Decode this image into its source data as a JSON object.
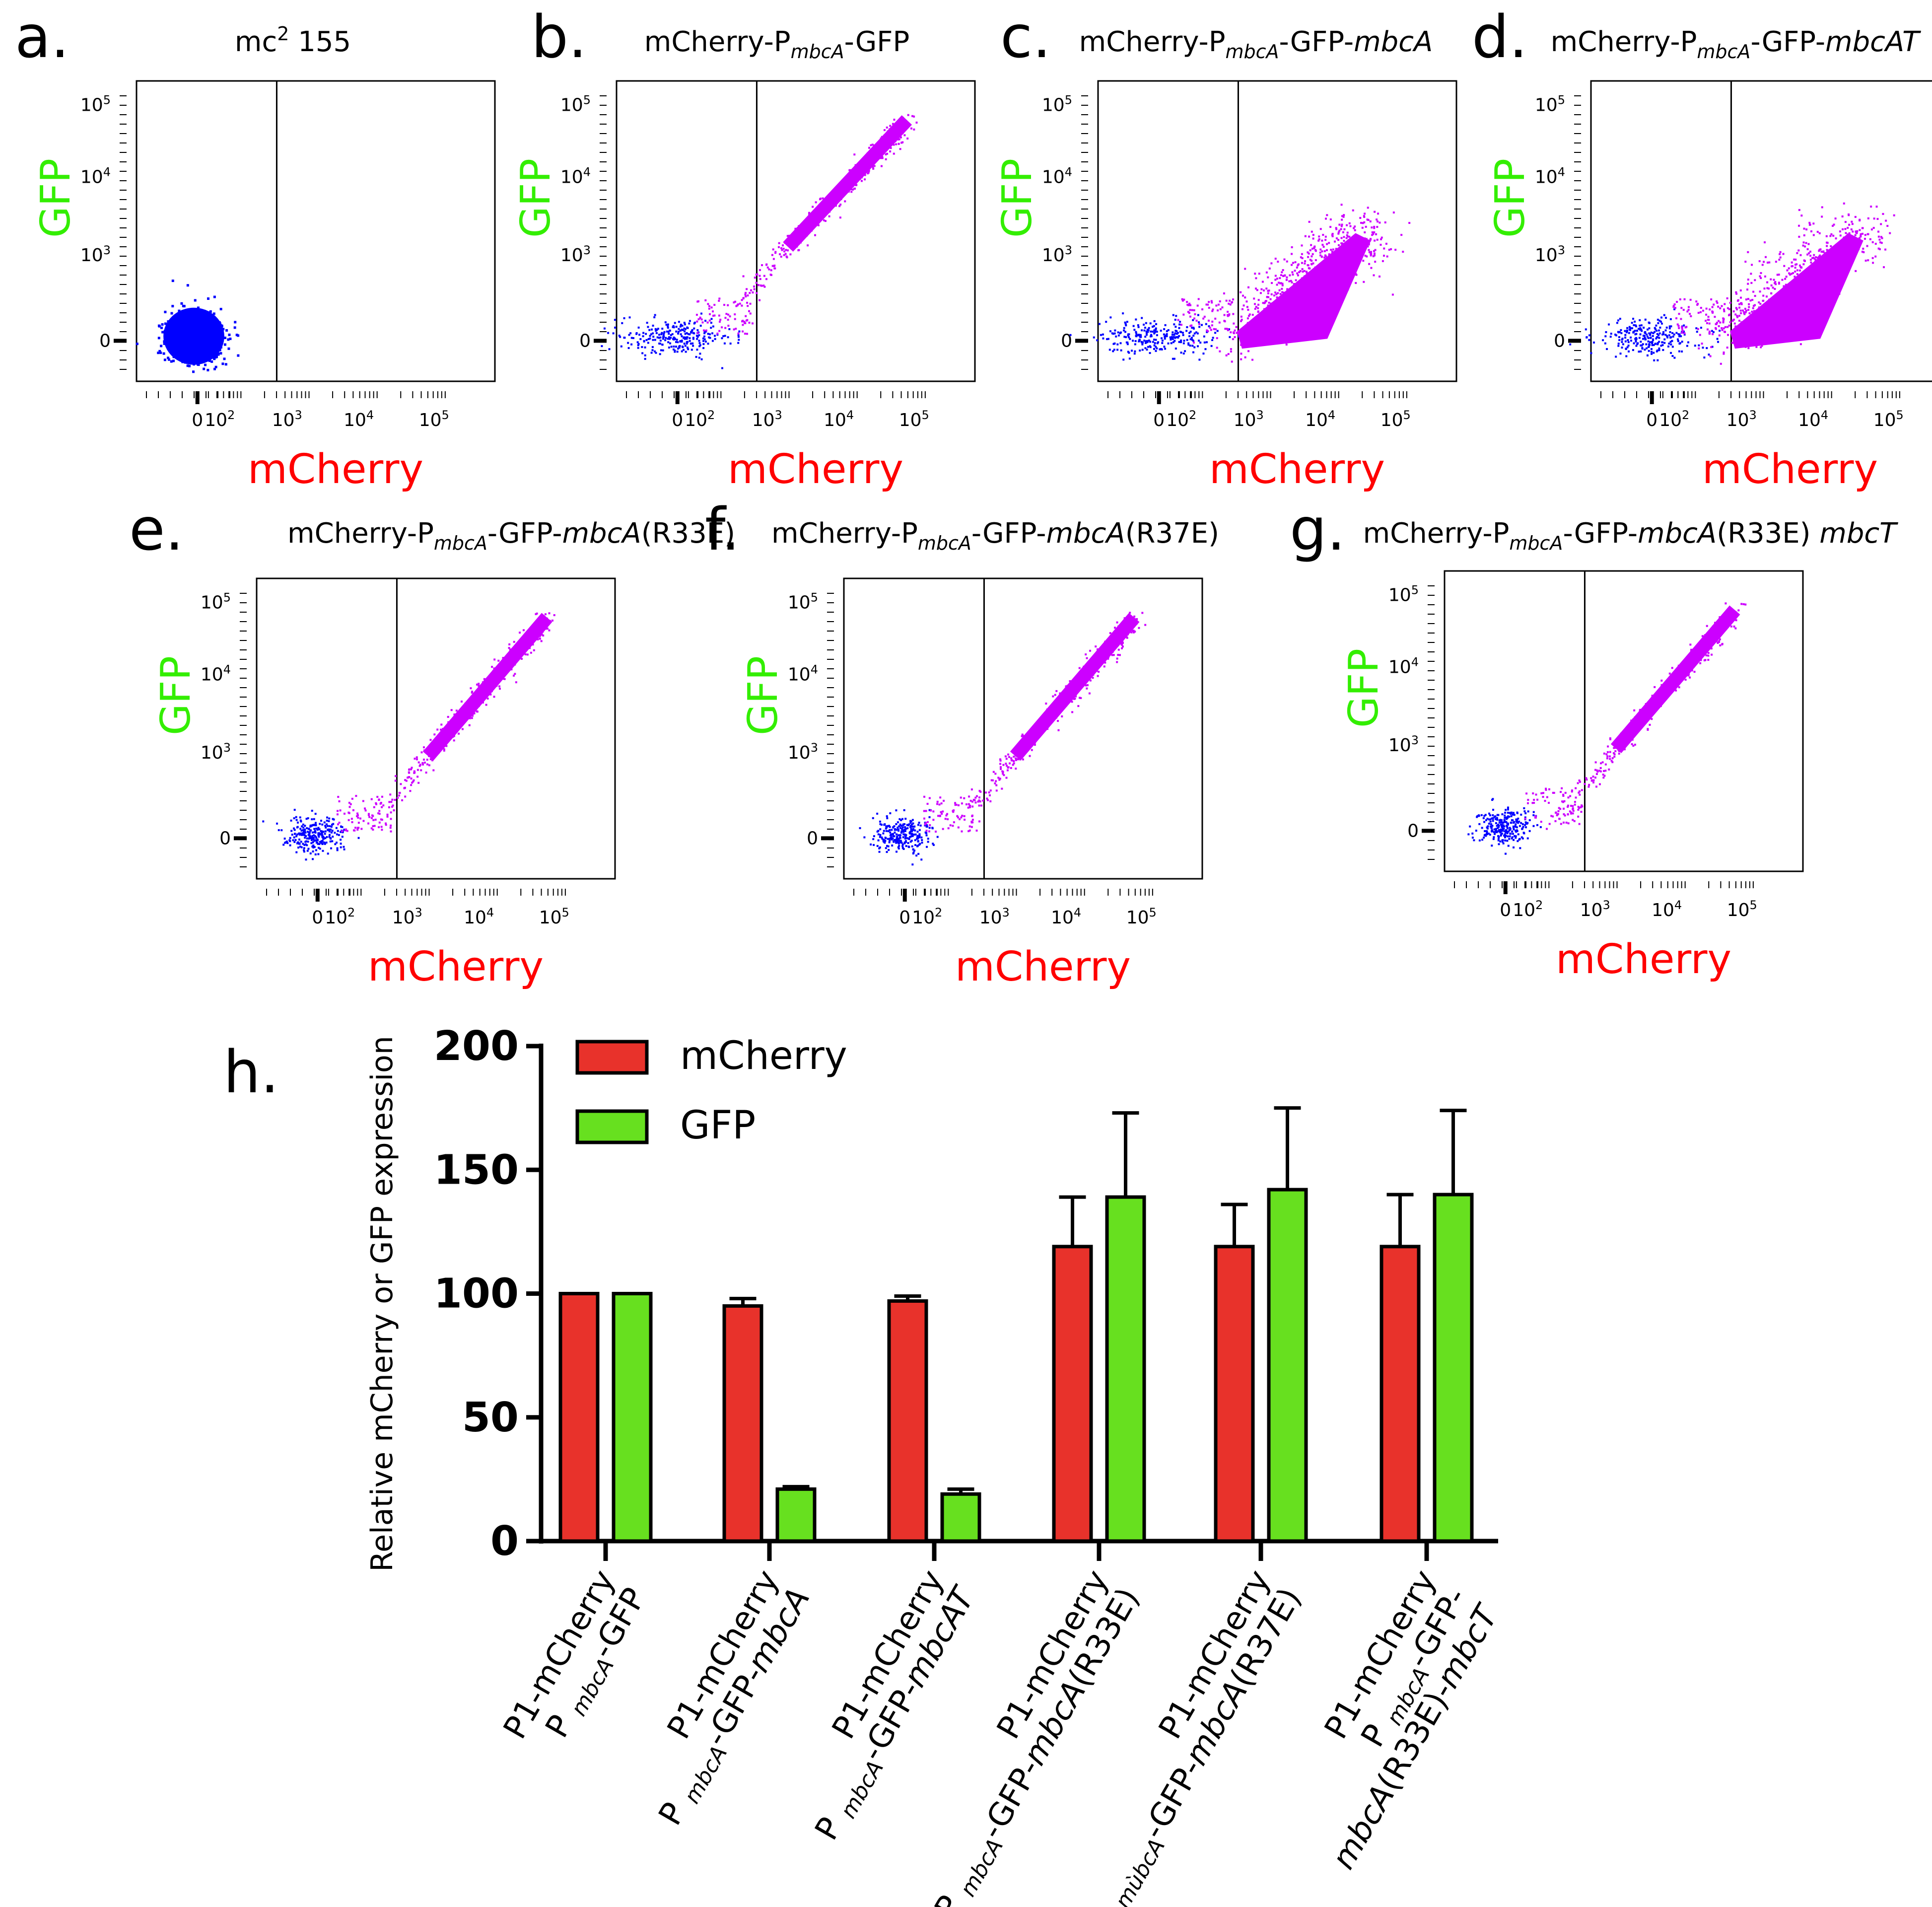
{
  "figure": {
    "panel_titles": {
      "a": [
        "mc",
        "2",
        " 155"
      ],
      "b": [
        "mCherry-P",
        "mbcA",
        "-GFP"
      ],
      "c": [
        "mCherry-P",
        "mbcA",
        "-GFP-",
        "mbcA"
      ],
      "d": [
        "mCherry-P",
        "mbcA",
        "-GFP-",
        "mbcAT"
      ],
      "e": [
        "mCherry-P",
        "mbcA",
        "-GFP-",
        "mbcA",
        "(R33E)"
      ],
      "f": [
        "mCherry-P",
        "mbcA",
        "-GFP-",
        "mbcA",
        "(R37E)"
      ],
      "g": [
        "mCherry-P",
        "mbcA",
        "-GFP-",
        "mbcA",
        "(R33E) ",
        "mbcT"
      ]
    }
  },
  "chart_data": [
    {
      "type": "scatter",
      "panel": "a.",
      "xlabel": "mCherry",
      "ylabel": "GFP",
      "x_ticks": [
        "0",
        "10",
        "10",
        "10",
        "10"
      ],
      "x_tick_exponents": [
        "",
        "2",
        "3",
        "4",
        "5"
      ],
      "y_ticks": [
        "0",
        "10",
        "10",
        "10"
      ],
      "y_tick_exponents": [
        "",
        "3",
        "4",
        "5"
      ],
      "gate_x": "≈300",
      "populations": [
        {
          "name": "negative",
          "color": "#0000ff",
          "x_center_decade": 1.1,
          "y_center_decade": 1.2,
          "density": "dense"
        }
      ]
    },
    {
      "type": "scatter",
      "panel": "b.",
      "xlabel": "mCherry",
      "ylabel": "GFP",
      "x_ticks": [
        "0",
        "10",
        "10",
        "10",
        "10"
      ],
      "x_tick_exponents": [
        "",
        "2",
        "3",
        "4",
        "5"
      ],
      "y_ticks": [
        "0",
        "10",
        "10",
        "10"
      ],
      "y_tick_exponents": [
        "",
        "3",
        "4",
        "5"
      ],
      "gate_x": "≈300",
      "populations": [
        {
          "name": "negative",
          "color": "#0000ff",
          "x_range_decade": [
            0.7,
            2.4
          ],
          "y_center_decade": 1.3,
          "density": "sparse"
        },
        {
          "name": "positive",
          "color": "#cc00ff",
          "x_range_decade": [
            3.0,
            4.3
          ],
          "y_range_decade": [
            2.7,
            3.9
          ],
          "density": "diagonal"
        }
      ]
    },
    {
      "type": "scatter",
      "panel": "c.",
      "xlabel": "mCherry",
      "ylabel": "GFP",
      "x_ticks": [
        "0",
        "10",
        "10",
        "10",
        "10"
      ],
      "x_tick_exponents": [
        "",
        "2",
        "3",
        "4",
        "5"
      ],
      "y_ticks": [
        "0",
        "10",
        "10",
        "10"
      ],
      "y_tick_exponents": [
        "",
        "3",
        "4",
        "5"
      ],
      "gate_x": "≈300",
      "populations": [
        {
          "name": "negative",
          "color": "#0000ff",
          "x_range_decade": [
            0.7,
            2.4
          ],
          "y_center_decade": 1.3,
          "density": "sparse"
        },
        {
          "name": "positive",
          "color": "#cc00ff",
          "x_range_decade": [
            3.0,
            4.3
          ],
          "y_range_decade": [
            1.2,
            2.8
          ],
          "density": "dense"
        }
      ]
    },
    {
      "type": "scatter",
      "panel": "d.",
      "xlabel": "mCherry",
      "ylabel": "GFP",
      "x_ticks": [
        "0",
        "10",
        "10",
        "10",
        "10"
      ],
      "x_tick_exponents": [
        "",
        "2",
        "3",
        "4",
        "5"
      ],
      "y_ticks": [
        "0",
        "10",
        "10",
        "10"
      ],
      "y_tick_exponents": [
        "",
        "3",
        "4",
        "5"
      ],
      "gate_x": "≈300",
      "populations": [
        {
          "name": "negative",
          "color": "#0000ff",
          "x_range_decade": [
            0.7,
            2.4
          ],
          "y_center_decade": 1.3,
          "density": "sparse"
        },
        {
          "name": "positive",
          "color": "#cc00ff",
          "x_range_decade": [
            3.0,
            4.4
          ],
          "y_range_decade": [
            1.2,
            2.9
          ],
          "density": "dense"
        }
      ]
    },
    {
      "type": "scatter",
      "panel": "e.",
      "xlabel": "mCherry",
      "ylabel": "GFP",
      "x_ticks": [
        "0",
        "10",
        "10",
        "10",
        "10"
      ],
      "x_tick_exponents": [
        "",
        "2",
        "3",
        "4",
        "5"
      ],
      "y_ticks": [
        "0",
        "10",
        "10",
        "10"
      ],
      "y_tick_exponents": [
        "",
        "3",
        "4",
        "5"
      ],
      "gate_x": "≈300",
      "populations": [
        {
          "name": "negative",
          "color": "#0000ff",
          "x_range_decade": [
            0.7,
            2.3
          ],
          "y_center_decade": 1.3,
          "density": "sparse"
        },
        {
          "name": "positive",
          "color": "#cc00ff",
          "x_range_decade": [
            2.8,
            4.3
          ],
          "y_range_decade": [
            2.4,
            4.0
          ],
          "density": "diagonal"
        }
      ]
    },
    {
      "type": "scatter",
      "panel": "f.",
      "xlabel": "mCherry",
      "ylabel": "GFP",
      "x_ticks": [
        "0",
        "10",
        "10",
        "10",
        "10"
      ],
      "x_tick_exponents": [
        "",
        "2",
        "3",
        "4",
        "5"
      ],
      "y_ticks": [
        "0",
        "10",
        "10",
        "10"
      ],
      "y_tick_exponents": [
        "",
        "3",
        "4",
        "5"
      ],
      "gate_x": "≈300",
      "populations": [
        {
          "name": "negative",
          "color": "#0000ff",
          "x_range_decade": [
            0.7,
            1.6
          ],
          "y_center_decade": 1.3,
          "density": "sparse"
        },
        {
          "name": "positive",
          "color": "#cc00ff",
          "x_range_decade": [
            2.7,
            4.3
          ],
          "y_range_decade": [
            2.3,
            4.0
          ],
          "density": "diagonal"
        }
      ]
    },
    {
      "type": "scatter",
      "panel": "g.",
      "xlabel": "mCherry",
      "ylabel": "GFP",
      "x_ticks": [
        "0",
        "10",
        "10",
        "10",
        "10"
      ],
      "x_tick_exponents": [
        "",
        "2",
        "3",
        "4",
        "5"
      ],
      "y_ticks": [
        "0",
        "10",
        "10",
        "10"
      ],
      "y_tick_exponents": [
        "",
        "3",
        "4",
        "5"
      ],
      "gate_x": "≈300",
      "populations": [
        {
          "name": "negative",
          "color": "#0000ff",
          "x_range_decade": [
            0.7,
            1.6
          ],
          "y_center_decade": 1.3,
          "density": "sparse"
        },
        {
          "name": "positive",
          "color": "#cc00ff",
          "x_range_decade": [
            2.7,
            4.3
          ],
          "y_range_decade": [
            2.3,
            4.0
          ],
          "density": "diagonal"
        }
      ]
    },
    {
      "type": "bar",
      "panel": "h.",
      "ylabel": "Relative mCherry or GFP expression",
      "ylim": [
        0,
        200
      ],
      "y_ticks": [
        "0",
        "50",
        "100",
        "150",
        "200"
      ],
      "legend": [
        {
          "name": "mCherry",
          "color": "#e8322b"
        },
        {
          "name": "GFP",
          "color": "#67e01f"
        }
      ],
      "categories": [
        {
          "line1": "P1-mCherry",
          "line2_parts": [
            "P ",
            "mbcA",
            "-GFP"
          ]
        },
        {
          "line1": "P1-mCherry",
          "line2_parts": [
            "P ",
            "mbcA",
            "-GFP-",
            "mbcA"
          ]
        },
        {
          "line1": "P1-mCherry",
          "line2_parts": [
            "P ",
            "mbcA",
            "-GFP-",
            "mbcAT"
          ]
        },
        {
          "line1": "P1-mCherry",
          "line2_parts": [
            "P ",
            "mbcA",
            "-GFP-",
            "mbcA",
            "(R33E)"
          ]
        },
        {
          "line1": "P1-mCherry",
          "line2_parts": [
            "P ",
            "mùbcA",
            "-GFP-",
            "mbcA",
            "(R37E)"
          ]
        },
        {
          "line1": "P1-mCherry",
          "line2_parts": [
            "P ",
            "mbcA",
            "-GFP-"
          ],
          "line3_parts": [
            "mbcA",
            "(R33E)-",
            "mbcT"
          ]
        }
      ],
      "series": [
        {
          "name": "mCherry",
          "values": [
            100,
            95,
            97,
            119,
            119,
            119
          ],
          "errors": [
            0,
            3,
            2,
            20,
            17,
            21
          ]
        },
        {
          "name": "GFP",
          "values": [
            100,
            21,
            19,
            139,
            142,
            140
          ],
          "errors": [
            0,
            1,
            2,
            34,
            33,
            34
          ]
        }
      ]
    }
  ]
}
